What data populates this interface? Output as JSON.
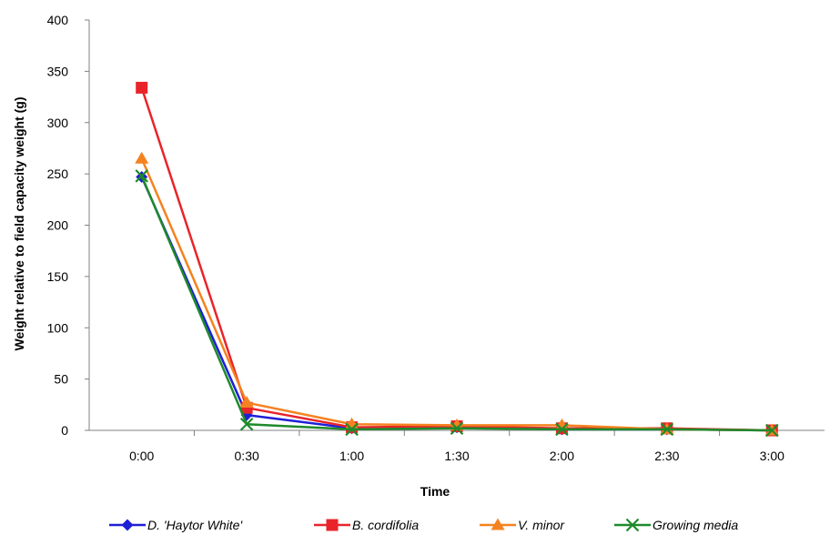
{
  "chart_data": {
    "type": "line",
    "title": "",
    "xlabel": "Time",
    "ylabel": "Weight relative to field capacity weight (g)",
    "categories": [
      "0:00",
      "0:30",
      "1:00",
      "1:30",
      "2:00",
      "2:30",
      "3:00"
    ],
    "yticks": [
      "0",
      "50",
      "100",
      "150",
      "200",
      "250",
      "300",
      "350",
      "400"
    ],
    "ylim": [
      0,
      400
    ],
    "grid": false,
    "legend_position": "bottom",
    "series": [
      {
        "name": "D. 'Haytor White'",
        "values": [
          247,
          15,
          2,
          3,
          1,
          1,
          0
        ],
        "color": "#1f1fd6",
        "marker": "diamond"
      },
      {
        "name": "B. cordifolia",
        "values": [
          334,
          22,
          3,
          4,
          2,
          2,
          0
        ],
        "color": "#e8242a",
        "marker": "square"
      },
      {
        "name": "V. minor",
        "values": [
          265,
          27,
          6,
          5,
          5,
          1,
          0
        ],
        "color": "#f58220",
        "marker": "triangle"
      },
      {
        "name": "Growing media",
        "values": [
          248,
          6,
          1,
          2,
          1,
          1,
          0
        ],
        "color": "#1e8a2c",
        "marker": "x"
      }
    ]
  }
}
